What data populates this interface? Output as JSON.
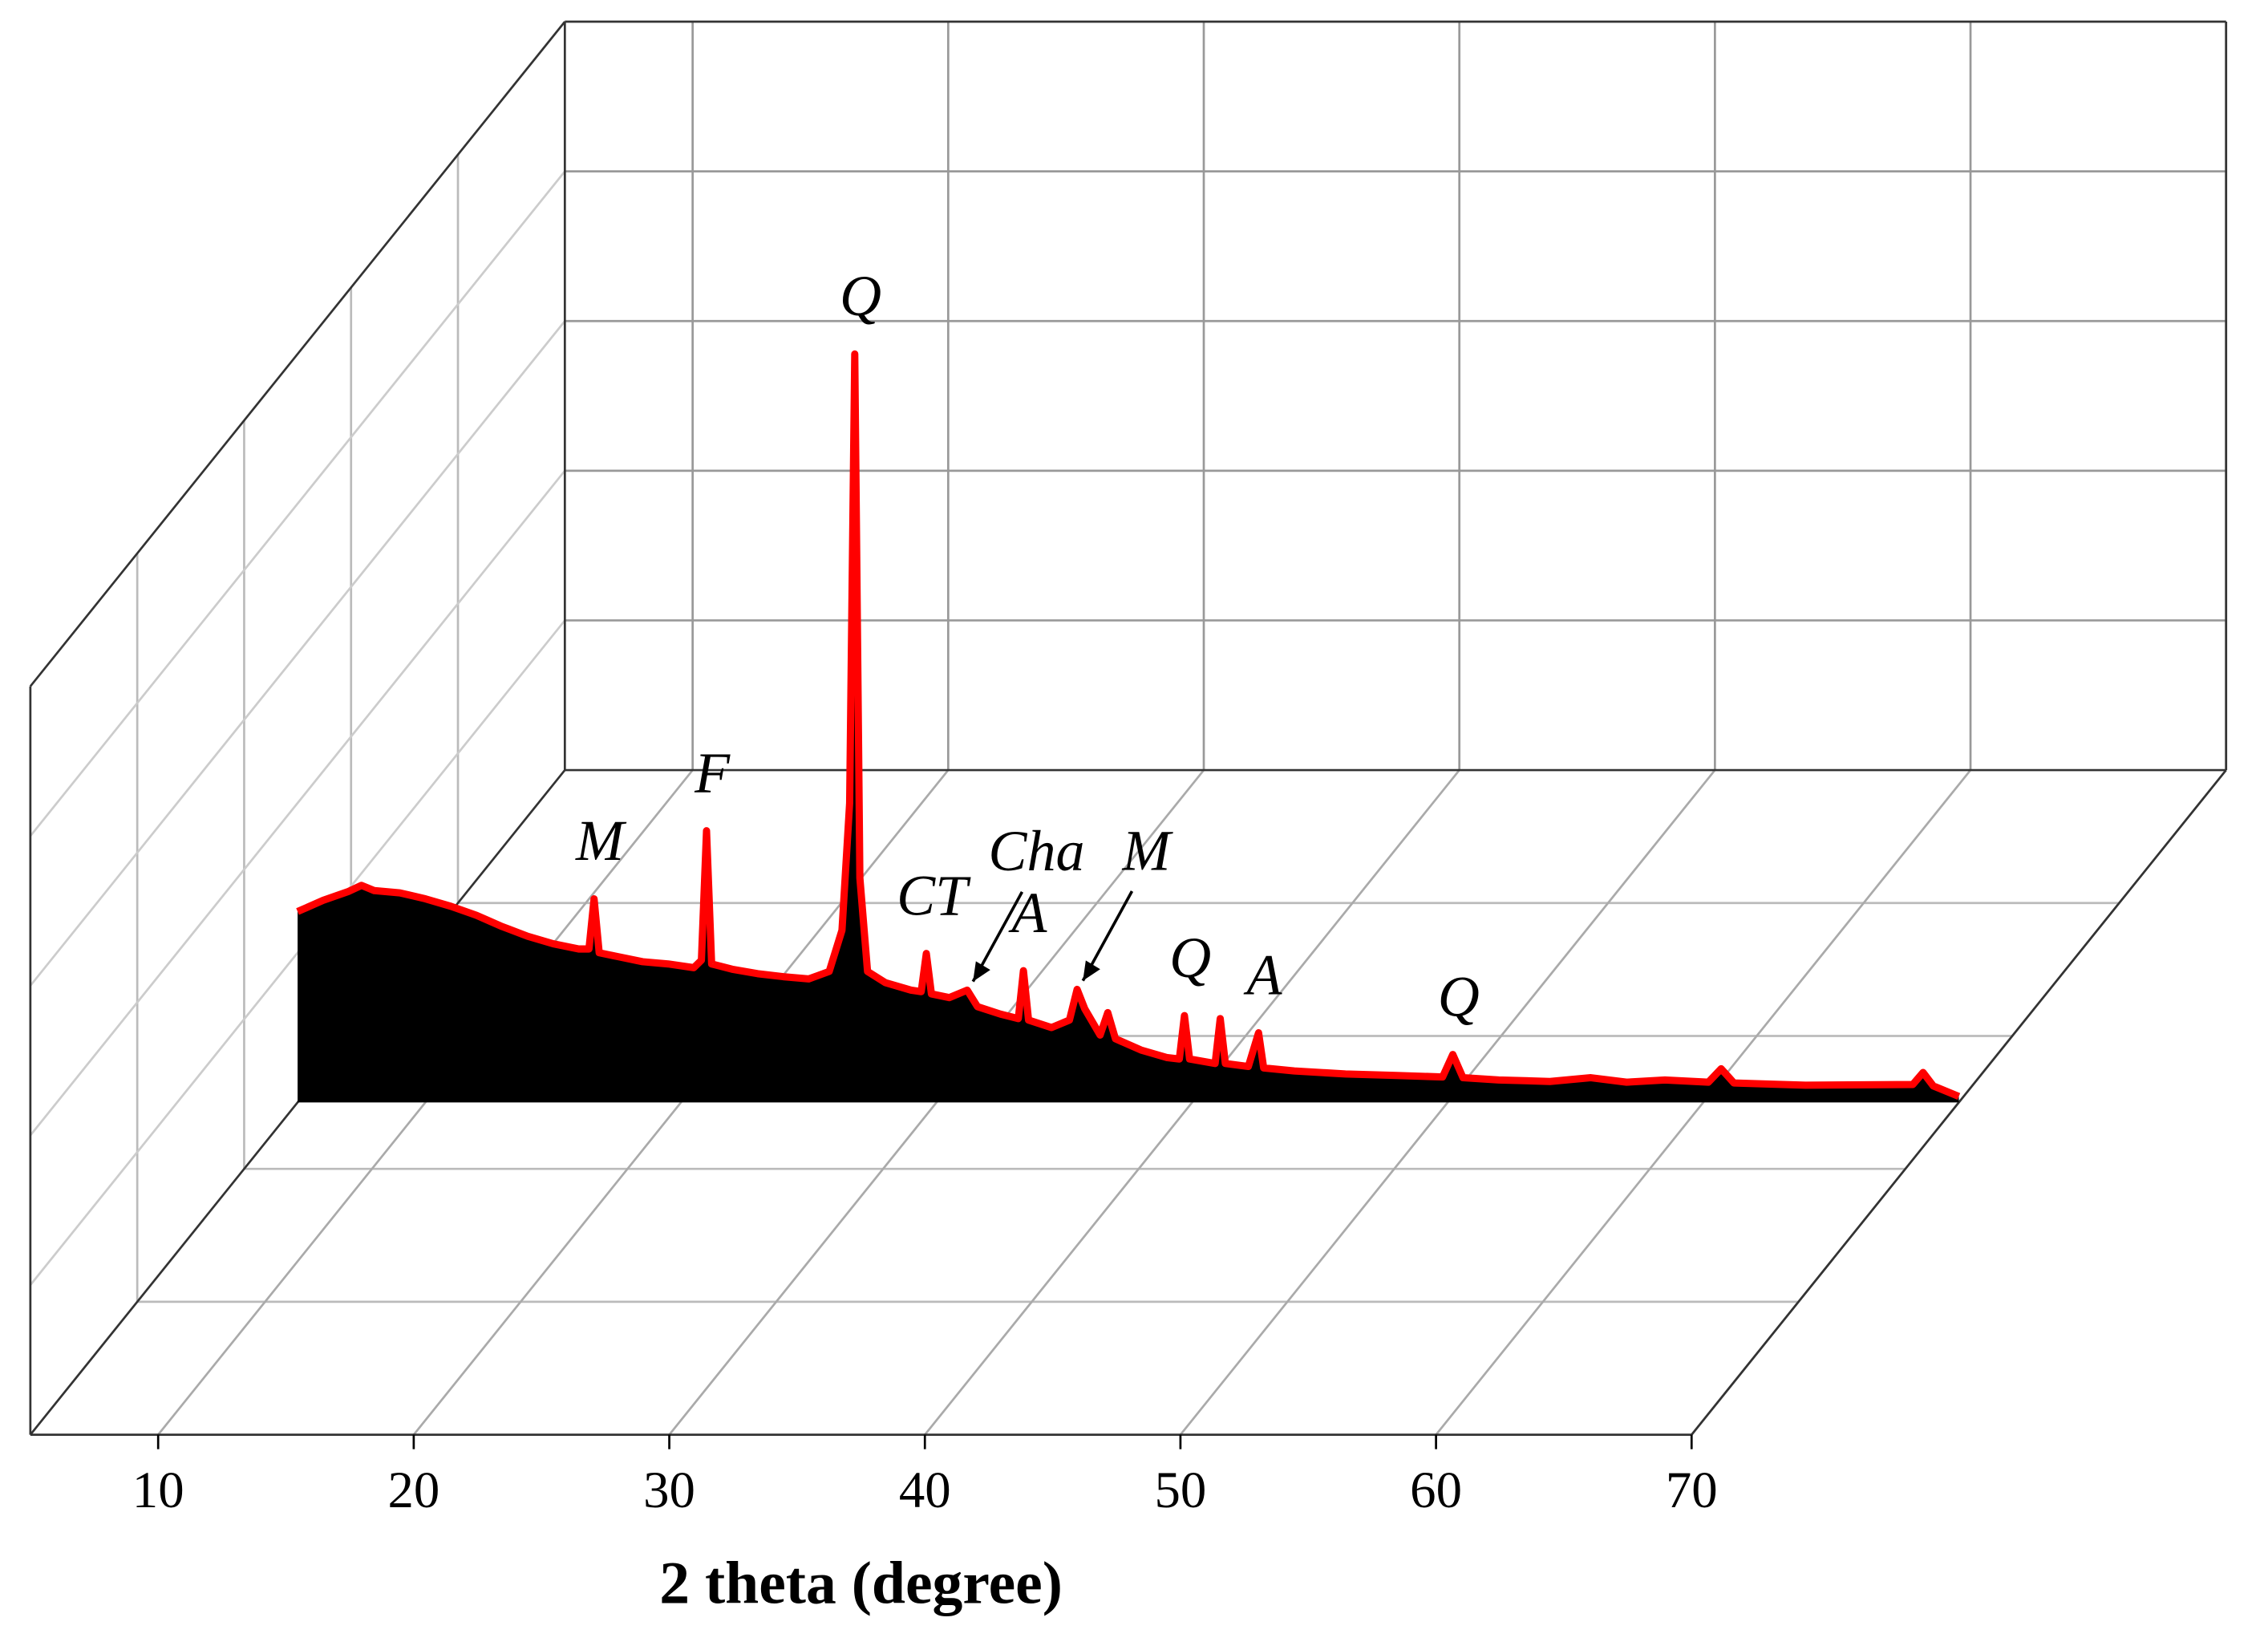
{
  "chart_data": {
    "type": "area",
    "x_label": "2 theta (degree)",
    "color": "#000000",
    "line_color": "#ff0000",
    "xlim": [
      5,
      70
    ],
    "xticks": [
      10,
      20,
      30,
      40,
      50,
      60,
      70
    ],
    "ylim": [
      0,
      1000
    ],
    "grid": true,
    "x": [
      5,
      6,
      7,
      7.5,
      8,
      9,
      10,
      11,
      12,
      13,
      14,
      15,
      16,
      16.4,
      16.6,
      16.8,
      17.5,
      18.5,
      19.5,
      20.5,
      20.8,
      21.0,
      21.2,
      22,
      23,
      24,
      25,
      25.8,
      26.3,
      26.6,
      26.8,
      27.0,
      27.3,
      28,
      29,
      29.4,
      29.6,
      29.8,
      30.5,
      31.2,
      31.6,
      32.5,
      33.2,
      33.4,
      33.6,
      34.5,
      35.2,
      35.5,
      35.8,
      36.4,
      36.7,
      37.0,
      38,
      39,
      39.5,
      39.7,
      39.9,
      40.9,
      41.1,
      41.3,
      42.2,
      42.6,
      42.8,
      44,
      46,
      48,
      49.8,
      50.2,
      50.6,
      52,
      54,
      55.6,
      57,
      58.5,
      60.2,
      60.7,
      61.2,
      64,
      68.2,
      68.6,
      69,
      70
    ],
    "values": [
      255,
      270,
      282,
      290,
      283,
      280,
      272,
      262,
      250,
      235,
      222,
      212,
      205,
      205,
      272,
      200,
      195,
      188,
      185,
      180,
      190,
      363,
      185,
      178,
      172,
      168,
      165,
      175,
      230,
      400,
      1000,
      300,
      175,
      160,
      150,
      148,
      199,
      145,
      140,
      150,
      128,
      118,
      112,
      176,
      110,
      100,
      110,
      151,
      125,
      90,
      120,
      85,
      70,
      60,
      58,
      116,
      58,
      52,
      112,
      52,
      48,
      93,
      46,
      42,
      38,
      36,
      34,
      64,
      33,
      30,
      28,
      33,
      27,
      30,
      27,
      45,
      26,
      23,
      24,
      40,
      22,
      8
    ],
    "annotations": [
      {
        "text": "M",
        "x": 16.6
      },
      {
        "text": "F",
        "x": 21.0
      },
      {
        "text": "Q",
        "x": 26.8
      },
      {
        "text": "CT",
        "x": 29.6
      },
      {
        "text": "Cha",
        "x": 31.2,
        "arrow": true
      },
      {
        "text": "A",
        "x": 33.4
      },
      {
        "text": "M",
        "x": 35.5,
        "arrow": true
      },
      {
        "text": "Q",
        "x": 39.7
      },
      {
        "text": "A",
        "x": 42.6
      },
      {
        "text": "Q",
        "x": 50.2
      }
    ]
  }
}
